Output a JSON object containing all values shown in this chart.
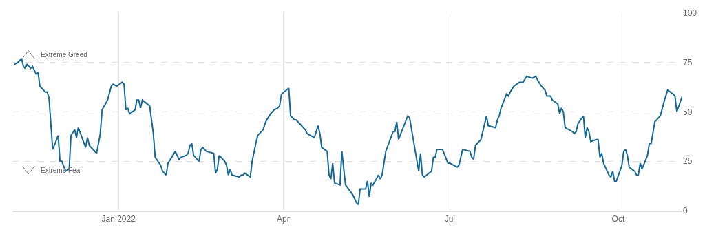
{
  "chart_data": {
    "type": "line",
    "color": "#13689a",
    "line_style": "solid",
    "marker": "none",
    "grid": true,
    "xlim": [
      "2021-11-04",
      "2022-11-05"
    ],
    "xticks": [
      {
        "value": "2022-01-01",
        "label": "Jan 2022"
      },
      {
        "value": "2022-04-01",
        "label": "Apr"
      },
      {
        "value": "2022-07-01",
        "label": "Jul"
      },
      {
        "value": "2022-10-01",
        "label": "Oct"
      }
    ],
    "ylim": [
      0,
      100
    ],
    "yticks": [
      0,
      25,
      50,
      75,
      100
    ],
    "annotations": [
      "Extreme Greed",
      "Extreme Fear"
    ],
    "x": [
      "2021-11-05",
      "2021-11-07",
      "2021-11-09",
      "2021-11-10",
      "2021-11-11",
      "2021-11-12",
      "2021-11-14",
      "2021-11-15",
      "2021-11-17",
      "2021-11-18",
      "2021-11-19",
      "2021-11-22",
      "2021-11-23",
      "2021-11-24",
      "2021-11-26",
      "2021-11-29",
      "2021-11-30",
      "2021-12-01",
      "2021-12-03",
      "2021-12-05",
      "2021-12-06",
      "2021-12-08",
      "2021-12-09",
      "2021-12-10",
      "2021-12-12",
      "2021-12-14",
      "2021-12-15",
      "2021-12-16",
      "2021-12-20",
      "2021-12-22",
      "2021-12-23",
      "2021-12-26",
      "2021-12-28",
      "2021-12-29",
      "2021-12-31",
      "2022-01-03",
      "2022-01-04",
      "2022-01-05",
      "2022-01-06",
      "2022-01-07",
      "2022-01-10",
      "2022-01-11",
      "2022-01-12",
      "2022-01-13",
      "2022-01-14",
      "2022-01-18",
      "2022-01-20",
      "2022-01-21",
      "2022-01-24",
      "2022-01-25",
      "2022-01-27",
      "2022-01-28",
      "2022-02-01",
      "2022-02-03",
      "2022-02-04",
      "2022-02-07",
      "2022-02-08",
      "2022-02-09",
      "2022-02-10",
      "2022-02-11",
      "2022-02-14",
      "2022-02-15",
      "2022-02-16",
      "2022-02-18",
      "2022-02-22",
      "2022-02-23",
      "2022-02-24",
      "2022-02-25",
      "2022-02-28",
      "2022-03-01",
      "2022-03-02",
      "2022-03-03",
      "2022-03-04",
      "2022-03-08",
      "2022-03-09",
      "2022-03-10",
      "2022-03-11",
      "2022-03-14",
      "2022-03-15",
      "2022-03-17",
      "2022-03-18",
      "2022-03-21",
      "2022-03-22",
      "2022-03-23",
      "2022-03-25",
      "2022-03-27",
      "2022-03-29",
      "2022-03-30",
      "2022-03-31",
      "2022-04-04",
      "2022-04-05",
      "2022-04-07",
      "2022-04-08",
      "2022-04-12",
      "2022-04-13",
      "2022-04-14",
      "2022-04-18",
      "2022-04-20",
      "2022-04-21",
      "2022-04-22",
      "2022-04-25",
      "2022-04-26",
      "2022-04-27",
      "2022-04-28",
      "2022-04-29",
      "2022-05-02",
      "2022-05-03",
      "2022-05-05",
      "2022-05-09",
      "2022-05-11",
      "2022-05-12",
      "2022-05-13",
      "2022-05-16",
      "2022-05-17",
      "2022-05-18",
      "2022-05-19",
      "2022-05-20",
      "2022-05-23",
      "2022-05-24",
      "2022-05-25",
      "2022-05-27",
      "2022-05-31",
      "2022-06-01",
      "2022-06-02",
      "2022-06-03",
      "2022-06-08",
      "2022-06-09",
      "2022-06-14",
      "2022-06-15",
      "2022-06-16",
      "2022-06-17",
      "2022-06-21",
      "2022-06-22",
      "2022-06-23",
      "2022-06-24",
      "2022-06-27",
      "2022-06-30",
      "2022-07-01",
      "2022-07-05",
      "2022-07-06",
      "2022-07-08",
      "2022-07-12",
      "2022-07-13",
      "2022-07-14",
      "2022-07-15",
      "2022-07-18",
      "2022-07-21",
      "2022-07-22",
      "2022-07-26",
      "2022-07-27",
      "2022-07-28",
      "2022-07-29",
      "2022-08-01",
      "2022-08-02",
      "2022-08-03",
      "2022-08-05",
      "2022-08-08",
      "2022-08-10",
      "2022-08-12",
      "2022-08-15",
      "2022-08-17",
      "2022-08-18",
      "2022-08-20",
      "2022-08-22",
      "2022-08-23",
      "2022-08-24",
      "2022-08-25",
      "2022-08-26",
      "2022-08-29",
      "2022-08-30",
      "2022-08-31",
      "2022-09-01",
      "2022-09-02",
      "2022-09-06",
      "2022-09-07",
      "2022-09-08",
      "2022-09-09",
      "2022-09-12",
      "2022-09-13",
      "2022-09-14",
      "2022-09-15",
      "2022-09-16",
      "2022-09-19",
      "2022-09-20",
      "2022-09-21",
      "2022-09-22",
      "2022-09-23",
      "2022-09-26",
      "2022-09-27",
      "2022-09-28",
      "2022-09-29",
      "2022-09-30",
      "2022-10-03",
      "2022-10-04",
      "2022-10-05",
      "2022-10-06",
      "2022-10-07",
      "2022-10-10",
      "2022-10-11",
      "2022-10-12",
      "2022-10-13",
      "2022-10-14",
      "2022-10-17",
      "2022-10-18",
      "2022-10-19",
      "2022-10-21",
      "2022-10-24",
      "2022-10-26",
      "2022-10-28",
      "2022-10-31",
      "2022-11-01",
      "2022-11-02",
      "2022-11-05"
    ],
    "values": [
      74,
      75,
      77,
      73,
      72,
      74,
      72,
      73,
      69,
      70,
      63,
      60,
      60,
      57,
      31,
      38,
      25,
      25,
      20,
      21,
      38,
      41,
      37,
      42,
      37,
      32,
      37,
      33,
      29,
      39,
      51,
      56,
      63,
      64,
      63,
      65,
      64,
      51,
      52,
      49,
      51,
      56,
      56,
      52,
      56,
      53,
      39,
      27,
      23,
      20,
      18,
      24,
      30,
      26,
      27,
      28,
      29,
      33,
      34,
      28,
      25,
      31,
      32,
      30,
      29,
      19,
      21,
      28,
      25,
      23,
      18,
      21,
      18,
      17,
      18,
      18,
      19,
      17,
      25,
      34,
      38,
      41,
      44,
      46,
      49,
      51,
      52,
      53,
      59,
      62,
      48,
      46,
      46,
      42,
      41,
      39,
      37,
      43,
      39,
      32,
      30,
      18,
      16,
      24,
      14,
      13,
      30,
      13,
      8,
      4,
      3,
      11,
      11,
      15,
      7,
      14,
      13,
      18,
      16,
      18,
      30,
      40,
      40,
      45,
      36,
      48,
      47,
      20,
      29,
      18,
      17,
      20,
      27,
      27,
      31,
      31,
      24,
      24,
      22,
      23,
      31,
      30,
      27,
      26,
      33,
      36,
      48,
      43,
      42,
      46,
      48,
      52,
      59,
      58,
      60,
      63,
      65,
      65,
      68,
      67,
      68,
      66,
      63,
      61,
      58,
      58,
      58,
      56,
      54,
      49,
      52,
      50,
      42,
      40,
      39,
      40,
      44,
      48,
      37,
      42,
      40,
      35,
      36,
      36,
      27,
      29,
      24,
      18,
      17,
      20,
      15,
      15,
      23,
      30,
      31,
      28,
      22,
      20,
      18,
      18,
      24,
      21,
      28,
      34,
      34,
      45,
      48,
      55,
      61,
      59,
      58,
      50,
      58
    ]
  }
}
